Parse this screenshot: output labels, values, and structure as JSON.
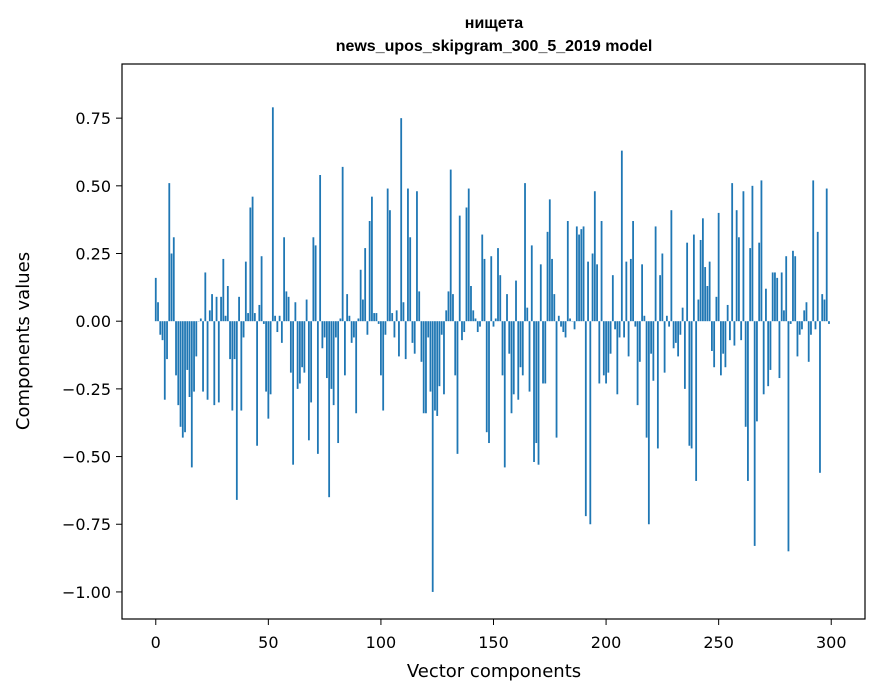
{
  "chart_data": {
    "type": "bar",
    "title": "нищета",
    "subtitle": "news_upos_skipgram_300_5_2019 model",
    "xlabel": "Vector components",
    "ylabel": "Components values",
    "xlim": [
      -15,
      315
    ],
    "ylim": [
      -1.1,
      0.95
    ],
    "xticks": [
      0,
      50,
      100,
      150,
      200,
      250,
      300
    ],
    "xtick_labels": [
      "0",
      "50",
      "100",
      "150",
      "200",
      "250",
      "300"
    ],
    "yticks": [
      0.75,
      0.5,
      0.25,
      0.0,
      -0.25,
      -0.5,
      -0.75,
      -1.0
    ],
    "ytick_labels": [
      "0.75",
      "0.50",
      "0.25",
      "0.00",
      "−0.25",
      "−0.50",
      "−0.75",
      "−1.00"
    ],
    "bar_color": "#1f77b4",
    "x": [
      0,
      1,
      2,
      3,
      4,
      5,
      6,
      7,
      8,
      9,
      10,
      11,
      12,
      13,
      14,
      15,
      16,
      17,
      18,
      19,
      20,
      21,
      22,
      23,
      24,
      25,
      26,
      27,
      28,
      29,
      30,
      31,
      32,
      33,
      34,
      35,
      36,
      37,
      38,
      39,
      40,
      41,
      42,
      43,
      44,
      45,
      46,
      47,
      48,
      49,
      50,
      51,
      52,
      53,
      54,
      55,
      56,
      57,
      58,
      59,
      60,
      61,
      62,
      63,
      64,
      65,
      66,
      67,
      68,
      69,
      70,
      71,
      72,
      73,
      74,
      75,
      76,
      77,
      78,
      79,
      80,
      81,
      82,
      83,
      84,
      85,
      86,
      87,
      88,
      89,
      90,
      91,
      92,
      93,
      94,
      95,
      96,
      97,
      98,
      99,
      100,
      101,
      102,
      103,
      104,
      105,
      106,
      107,
      108,
      109,
      110,
      111,
      112,
      113,
      114,
      115,
      116,
      117,
      118,
      119,
      120,
      121,
      122,
      123,
      124,
      125,
      126,
      127,
      128,
      129,
      130,
      131,
      132,
      133,
      134,
      135,
      136,
      137,
      138,
      139,
      140,
      141,
      142,
      143,
      144,
      145,
      146,
      147,
      148,
      149,
      150,
      151,
      152,
      153,
      154,
      155,
      156,
      157,
      158,
      159,
      160,
      161,
      162,
      163,
      164,
      165,
      166,
      167,
      168,
      169,
      170,
      171,
      172,
      173,
      174,
      175,
      176,
      177,
      178,
      179,
      180,
      181,
      182,
      183,
      184,
      185,
      186,
      187,
      188,
      189,
      190,
      191,
      192,
      193,
      194,
      195,
      196,
      197,
      198,
      199,
      200,
      201,
      202,
      203,
      204,
      205,
      206,
      207,
      208,
      209,
      210,
      211,
      212,
      213,
      214,
      215,
      216,
      217,
      218,
      219,
      220,
      221,
      222,
      223,
      224,
      225,
      226,
      227,
      228,
      229,
      230,
      231,
      232,
      233,
      234,
      235,
      236,
      237,
      238,
      239,
      240,
      241,
      242,
      243,
      244,
      245,
      246,
      247,
      248,
      249,
      250,
      251,
      252,
      253,
      254,
      255,
      256,
      257,
      258,
      259,
      260,
      261,
      262,
      263,
      264,
      265,
      266,
      267,
      268,
      269,
      270,
      271,
      272,
      273,
      274,
      275,
      276,
      277,
      278,
      279,
      280,
      281,
      282,
      283,
      284,
      285,
      286,
      287,
      288,
      289,
      290,
      291,
      292,
      293,
      294,
      295,
      296,
      297,
      298,
      299
    ],
    "values": [
      0.16,
      0.07,
      -0.05,
      -0.07,
      -0.29,
      -0.14,
      0.51,
      0.25,
      0.31,
      -0.2,
      -0.31,
      -0.39,
      -0.43,
      -0.41,
      -0.18,
      -0.28,
      -0.54,
      -0.26,
      -0.13,
      0.0,
      0.01,
      -0.26,
      0.18,
      -0.29,
      0.04,
      0.1,
      -0.31,
      0.09,
      -0.3,
      0.09,
      0.23,
      0.02,
      0.13,
      -0.14,
      -0.33,
      -0.14,
      -0.66,
      0.09,
      -0.33,
      -0.06,
      0.22,
      0.03,
      0.42,
      0.46,
      0.03,
      -0.46,
      0.06,
      0.24,
      -0.01,
      -0.26,
      -0.36,
      -0.27,
      0.79,
      0.02,
      -0.04,
      0.02,
      -0.08,
      0.31,
      0.11,
      0.09,
      -0.19,
      -0.53,
      0.07,
      -0.25,
      -0.23,
      -0.17,
      -0.19,
      0.08,
      -0.44,
      -0.3,
      0.31,
      0.28,
      -0.49,
      0.54,
      -0.1,
      -0.06,
      -0.21,
      -0.65,
      -0.25,
      -0.31,
      -0.06,
      -0.45,
      0.01,
      0.57,
      -0.2,
      0.1,
      0.02,
      -0.08,
      -0.06,
      -0.34,
      0.01,
      0.19,
      0.08,
      0.27,
      -0.05,
      0.37,
      0.46,
      0.03,
      0.03,
      -0.01,
      -0.2,
      -0.33,
      -0.05,
      0.49,
      0.41,
      0.03,
      -0.06,
      0.04,
      -0.13,
      0.75,
      0.07,
      -0.14,
      0.49,
      0.31,
      -0.08,
      -0.12,
      0.48,
      0.11,
      -0.15,
      -0.34,
      -0.34,
      -0.06,
      -0.26,
      -1.0,
      -0.33,
      -0.35,
      -0.24,
      -0.05,
      -0.27,
      0.04,
      0.11,
      0.56,
      0.1,
      -0.2,
      -0.49,
      0.39,
      -0.07,
      -0.04,
      0.42,
      0.49,
      0.13,
      0.04,
      0.01,
      -0.04,
      -0.02,
      0.32,
      0.23,
      -0.41,
      -0.45,
      0.24,
      -0.02,
      0.01,
      0.27,
      0.17,
      -0.2,
      -0.54,
      0.1,
      -0.12,
      -0.34,
      -0.27,
      0.15,
      -0.29,
      -0.17,
      -0.2,
      0.51,
      0.05,
      -0.26,
      0.28,
      -0.52,
      -0.45,
      -0.53,
      0.21,
      -0.23,
      -0.23,
      0.33,
      0.45,
      0.23,
      0.1,
      -0.43,
      0.02,
      -0.02,
      -0.04,
      -0.06,
      0.37,
      0.01,
      0.0,
      -0.03,
      0.35,
      0.32,
      0.34,
      0.35,
      -0.72,
      0.22,
      -0.75,
      0.25,
      0.48,
      0.21,
      -0.23,
      0.37,
      -0.2,
      -0.23,
      -0.19,
      -0.12,
      0.17,
      -0.03,
      -0.27,
      -0.06,
      0.63,
      -0.06,
      0.22,
      -0.13,
      0.23,
      0.37,
      -0.02,
      -0.31,
      -0.15,
      0.21,
      0.02,
      -0.43,
      -0.75,
      -0.12,
      -0.22,
      0.35,
      -0.47,
      0.17,
      0.25,
      -0.19,
      0.02,
      -0.02,
      0.41,
      -0.1,
      -0.08,
      -0.13,
      -0.05,
      0.05,
      -0.25,
      0.29,
      -0.46,
      -0.47,
      0.32,
      -0.59,
      0.08,
      0.3,
      0.38,
      0.2,
      0.13,
      0.22,
      -0.11,
      -0.17,
      0.09,
      0.4,
      -0.2,
      -0.12,
      -0.17,
      0.06,
      -0.07,
      0.51,
      -0.09,
      0.41,
      0.31,
      -0.07,
      0.48,
      -0.39,
      -0.59,
      0.27,
      0.5,
      -0.83,
      -0.37,
      0.29,
      0.52,
      -0.27,
      0.12,
      -0.24,
      -0.18,
      0.18,
      0.18,
      0.16,
      -0.21,
      0.18,
      0.04,
      0.24,
      -0.85,
      -0.01,
      0.26,
      0.24,
      -0.13,
      -0.05,
      -0.03,
      0.04,
      0.07,
      -0.15,
      -0.05,
      0.52,
      -0.03,
      0.33,
      -0.56,
      0.1,
      0.08,
      0.49,
      -0.01
    ]
  }
}
